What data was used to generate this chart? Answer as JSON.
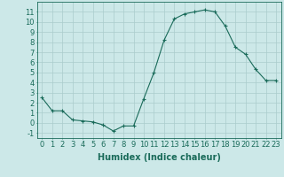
{
  "x": [
    0,
    1,
    2,
    3,
    4,
    5,
    6,
    7,
    8,
    9,
    10,
    11,
    12,
    13,
    14,
    15,
    16,
    17,
    18,
    19,
    20,
    21,
    22,
    23
  ],
  "y": [
    2.5,
    1.2,
    1.2,
    0.3,
    0.2,
    0.1,
    -0.2,
    -0.8,
    -0.3,
    -0.3,
    2.4,
    5.0,
    8.2,
    10.3,
    10.8,
    11.0,
    11.2,
    11.0,
    9.6,
    7.5,
    6.8,
    5.3,
    4.2,
    4.2
  ],
  "line_color": "#1a6b5a",
  "marker": "+",
  "bg_color": "#cce8e8",
  "grid_color": "#aacccc",
  "xlabel": "Humidex (Indice chaleur)",
  "ylim": [
    -1.5,
    12.0
  ],
  "xlim": [
    -0.5,
    23.5
  ],
  "yticks": [
    -1,
    0,
    1,
    2,
    3,
    4,
    5,
    6,
    7,
    8,
    9,
    10,
    11
  ],
  "xticks": [
    0,
    1,
    2,
    3,
    4,
    5,
    6,
    7,
    8,
    9,
    10,
    11,
    12,
    13,
    14,
    15,
    16,
    17,
    18,
    19,
    20,
    21,
    22,
    23
  ],
  "axis_color": "#1a6b5a",
  "tick_font_size": 6,
  "xlabel_font_size": 7
}
